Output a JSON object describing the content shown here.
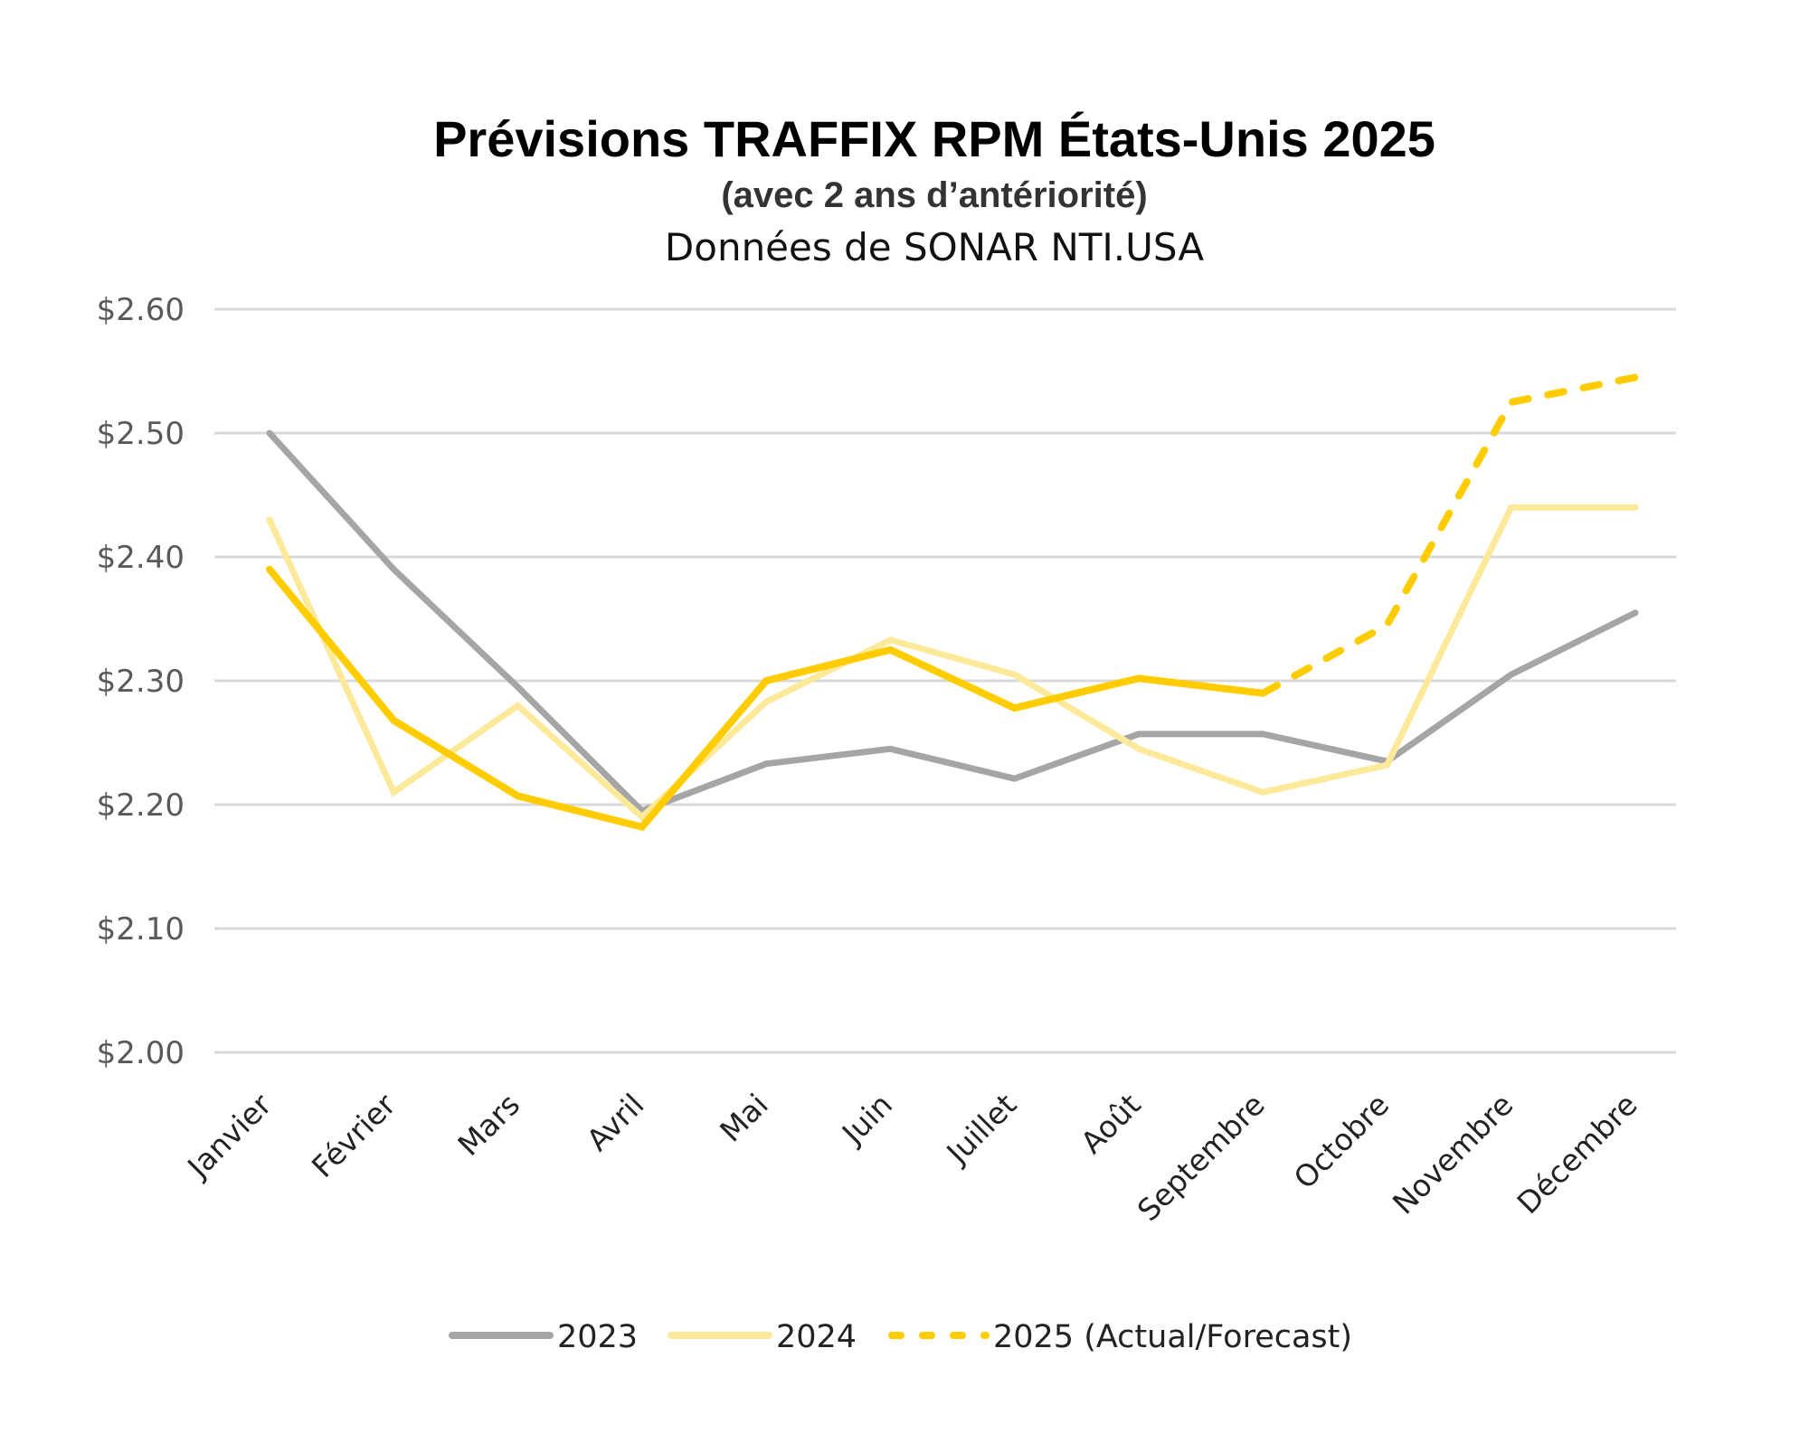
{
  "chart_data": {
    "type": "line",
    "title": "Prévisions TRAFFIX RPM États-Unis 2025",
    "subtitle": "(avec 2 ans d’antériorité)",
    "source_note": "Données de SONAR NTI.USA",
    "xlabel": "",
    "ylabel": "",
    "categories": [
      "Janvier",
      "Février",
      "Mars",
      "Avril",
      "Mai",
      "Juin",
      "Juillet",
      "Août",
      "Septembre",
      "Octobre",
      "Novembre",
      "Décembre"
    ],
    "ylim": [
      2.0,
      2.6
    ],
    "yticks": [
      2.0,
      2.1,
      2.2,
      2.3,
      2.4,
      2.5,
      2.6
    ],
    "ytick_labels": [
      "$2.00",
      "$2.10",
      "$2.20",
      "$2.30",
      "$2.40",
      "$2.50",
      "$2.60"
    ],
    "grid": true,
    "legend_position": "bottom",
    "series": [
      {
        "name": "2023",
        "color": "#A5A5A5",
        "style": "solid",
        "values": [
          2.5,
          2.39,
          2.295,
          2.195,
          2.233,
          2.245,
          2.221,
          2.257,
          2.257,
          2.235,
          2.305,
          2.355
        ]
      },
      {
        "name": "2024",
        "color": "#FDE99A",
        "style": "solid",
        "values": [
          2.43,
          2.21,
          2.28,
          2.19,
          2.283,
          2.333,
          2.305,
          2.245,
          2.21,
          2.232,
          2.44,
          2.44
        ]
      },
      {
        "name": "2025 (Actual/Forecast)",
        "color": "#FFCC00",
        "style": "solid-then-dashed",
        "actual_through_index": 8,
        "values": [
          2.39,
          2.268,
          2.207,
          2.182,
          2.3,
          2.325,
          2.278,
          2.302,
          2.29,
          2.345,
          2.525,
          2.545
        ]
      }
    ]
  }
}
